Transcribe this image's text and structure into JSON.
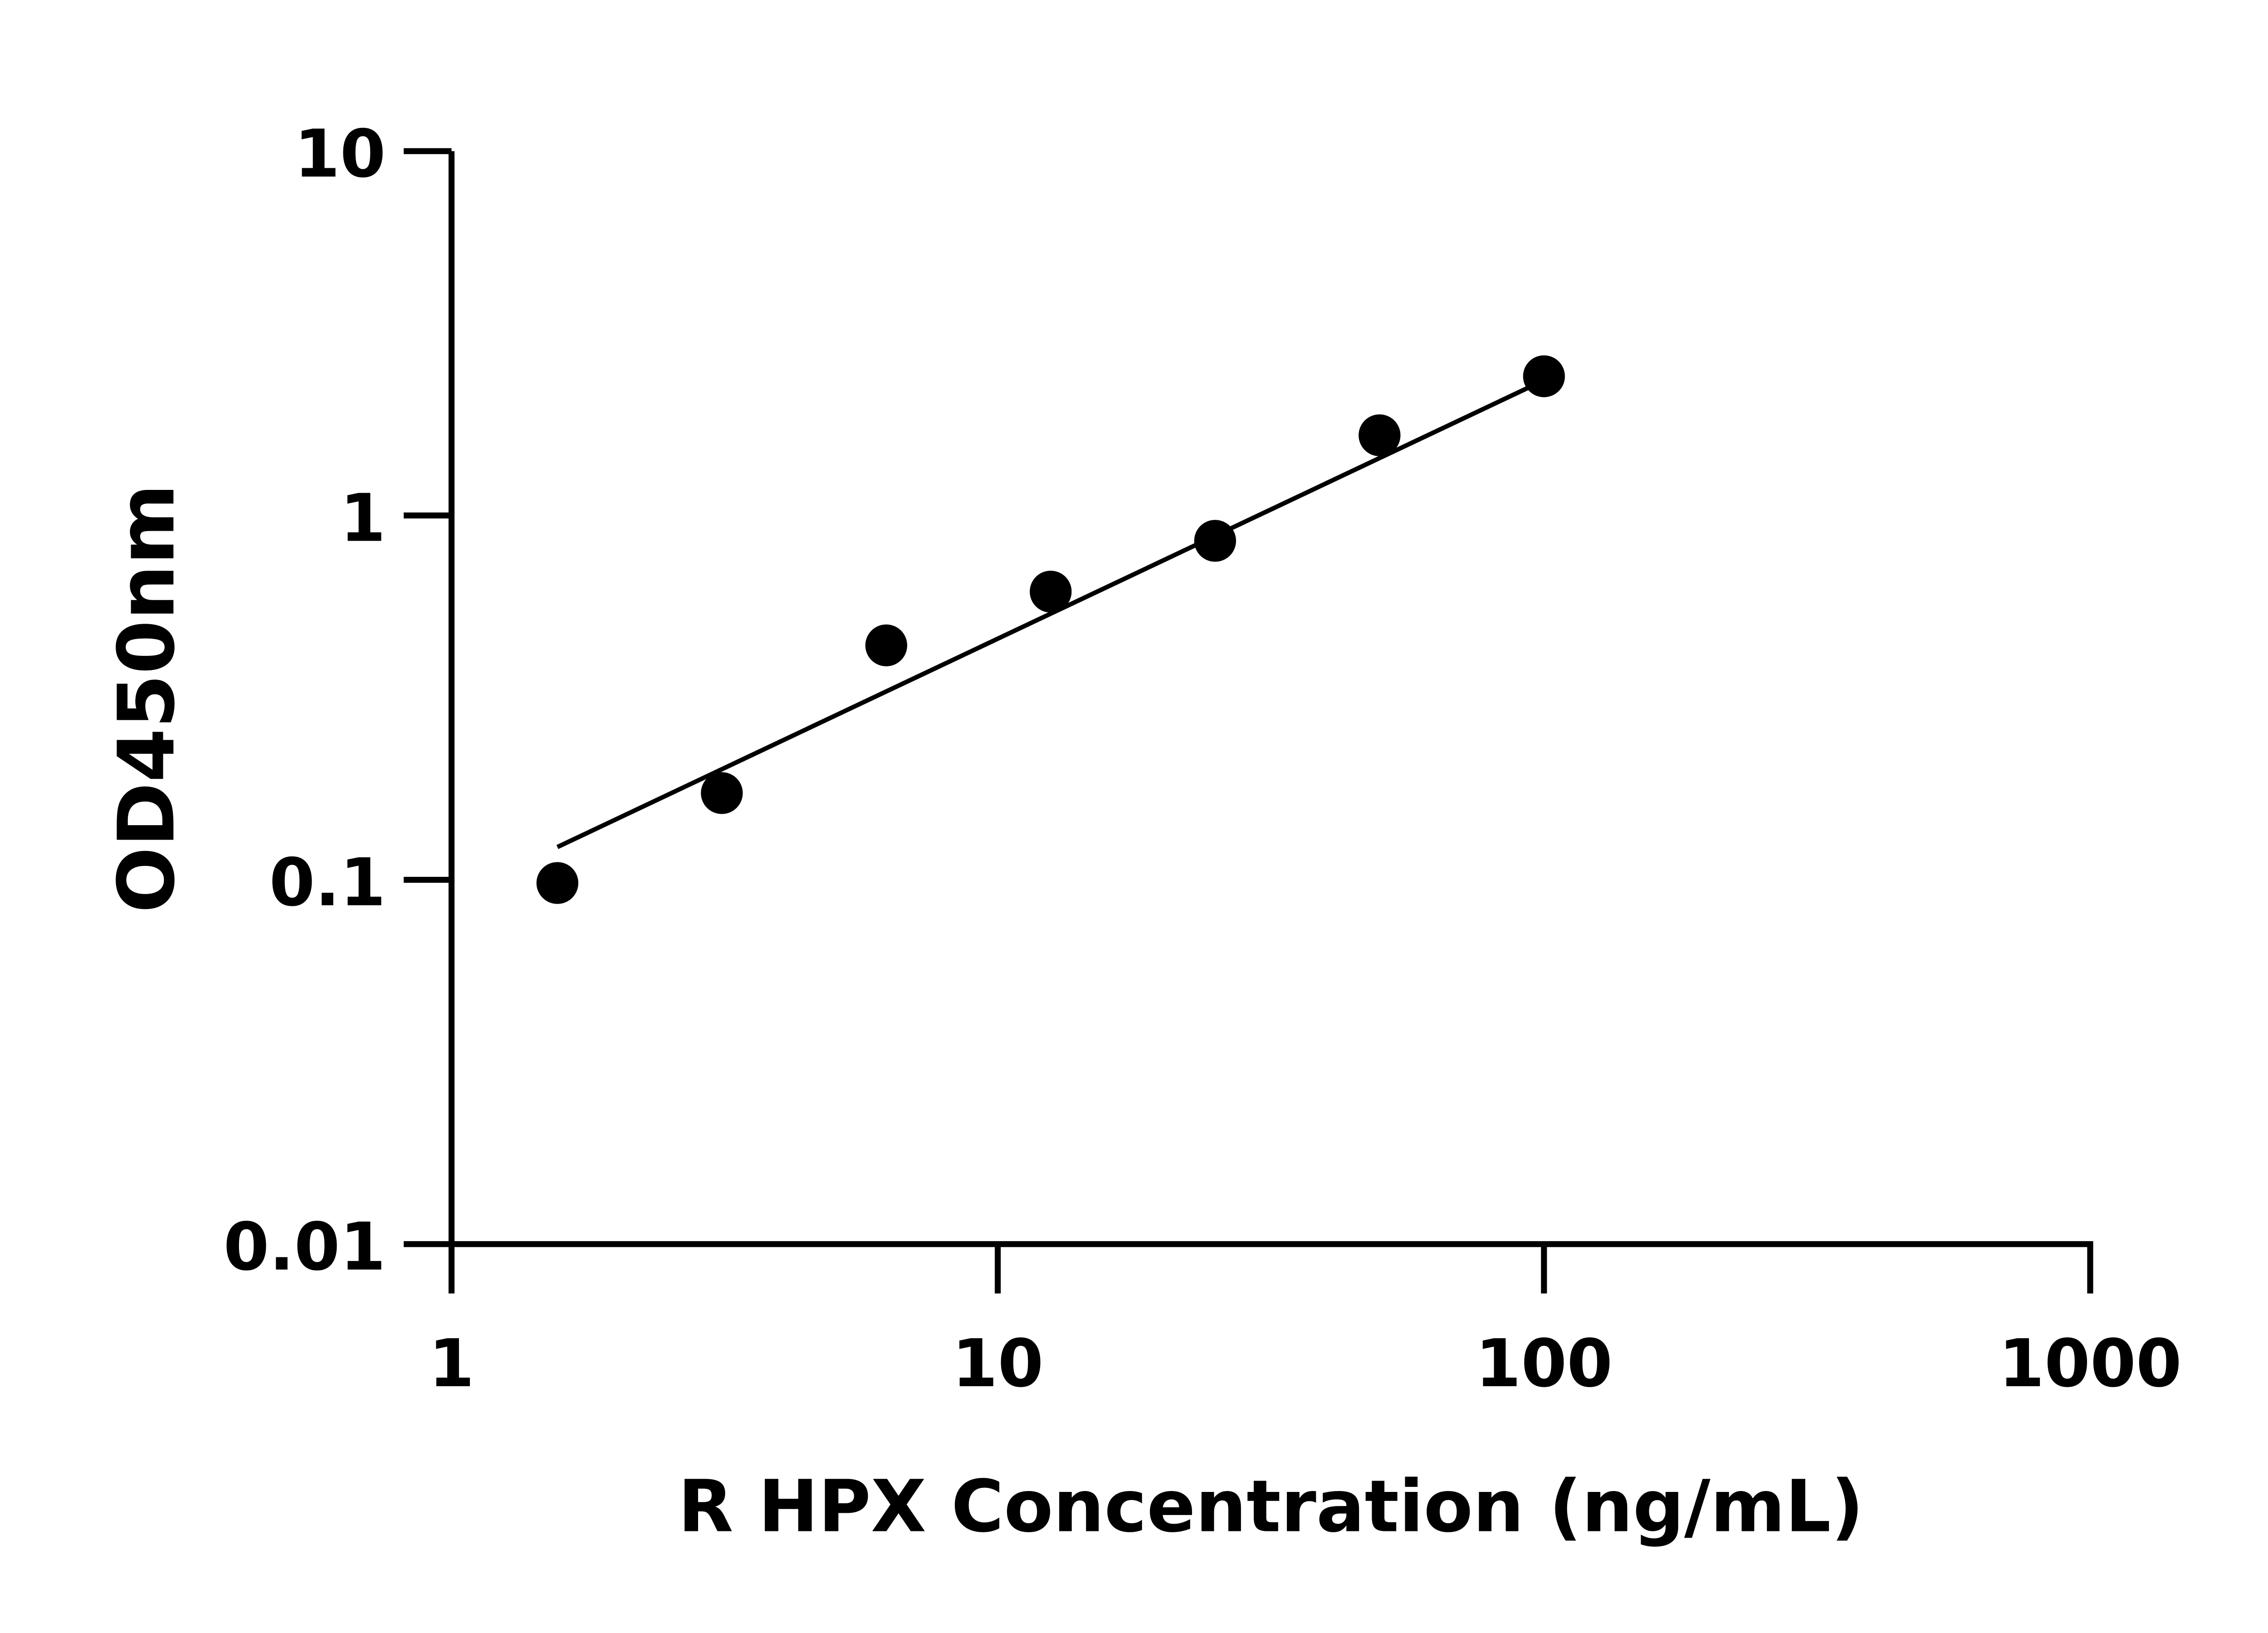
{
  "chart_data": {
    "type": "scatter",
    "title": "",
    "xlabel": "R HPX Concentration (ng/mL)",
    "ylabel": "OD450nm",
    "x_scale": "log",
    "y_scale": "log",
    "xlim": [
      1,
      1000
    ],
    "ylim": [
      0.01,
      10
    ],
    "x_ticks": [
      "1",
      "10",
      "100",
      "1000"
    ],
    "y_ticks": [
      "0.01",
      "0.1",
      "1",
      "10"
    ],
    "grid": false,
    "legend": "none",
    "points": {
      "x": [
        1.5625,
        3.125,
        6.25,
        12.5,
        25,
        50,
        100
      ],
      "y": [
        0.098,
        0.173,
        0.44,
        0.618,
        0.852,
        1.66,
        2.41
      ]
    },
    "fit_line": {
      "x": [
        1.5625,
        100
      ],
      "y": [
        0.123,
        2.35
      ]
    },
    "colors": {
      "marks": "#000000",
      "axes": "#000000"
    }
  }
}
